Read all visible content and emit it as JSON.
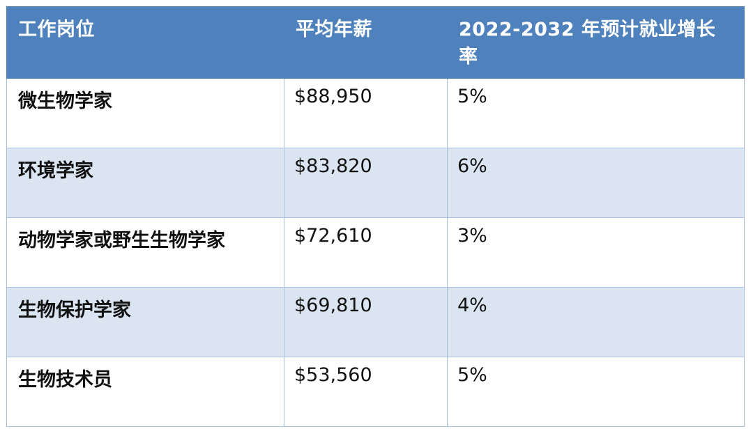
{
  "table": {
    "headers": [
      "工作岗位",
      "平均年薪",
      "2022-2032 年预计就业增长率"
    ],
    "rows": [
      {
        "job": "微生物学家",
        "salary": "$88,950",
        "growth": "5%"
      },
      {
        "job": "环境学家",
        "salary": "$83,820",
        "growth": "6%"
      },
      {
        "job": "动物学家或野生生物学家",
        "salary": "$72,610",
        "growth": "3%"
      },
      {
        "job": "生物保护学家",
        "salary": "$69,810",
        "growth": "4%"
      },
      {
        "job": "生物技术员",
        "salary": "$53,560",
        "growth": "5%"
      }
    ]
  },
  "colors": {
    "header_bg": "#4f81bd",
    "header_text": "#ffffff",
    "band_bg": "#dbe5f1",
    "border": "#a9bfe0"
  }
}
